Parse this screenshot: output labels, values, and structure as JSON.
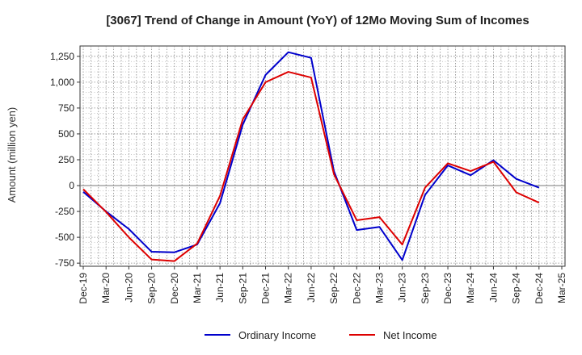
{
  "chart_data": {
    "type": "line",
    "title": "[3067]  Trend of Change in Amount (YoY) of 12Mo Moving Sum of Incomes",
    "xlabel": "",
    "ylabel": "Amount (million yen)",
    "ylim": [
      -780,
      1350
    ],
    "yticks": [
      -750,
      -500,
      -250,
      0,
      250,
      500,
      750,
      1000,
      1250
    ],
    "ytick_labels": [
      "-750",
      "-500",
      "-250",
      "0",
      "250",
      "500",
      "750",
      "1,000",
      "1,250"
    ],
    "categories": [
      "Dec-19",
      "Mar-20",
      "Jun-20",
      "Sep-20",
      "Dec-20",
      "Mar-21",
      "Jun-21",
      "Sep-21",
      "Dec-21",
      "Mar-22",
      "Jun-22",
      "Sep-22",
      "Dec-22",
      "Mar-23",
      "Jun-23",
      "Sep-23",
      "Dec-23",
      "Mar-24",
      "Jun-24",
      "Sep-24",
      "Dec-24",
      "Mar-25"
    ],
    "grid": true,
    "legend_position": "bottom-center",
    "series": [
      {
        "name": "Ordinary Income",
        "color": "#0000cc",
        "values": [
          -60,
          -250,
          -420,
          -640,
          -645,
          -570,
          -170,
          590,
          1070,
          1290,
          1235,
          140,
          -430,
          -400,
          -720,
          -90,
          195,
          100,
          245,
          65,
          -20,
          null
        ]
      },
      {
        "name": "Net Income",
        "color": "#dd0000",
        "values": [
          -35,
          -255,
          -500,
          -715,
          -730,
          -560,
          -100,
          640,
          1000,
          1100,
          1045,
          110,
          -335,
          -305,
          -570,
          -20,
          215,
          140,
          230,
          -65,
          -165,
          null
        ]
      }
    ]
  }
}
